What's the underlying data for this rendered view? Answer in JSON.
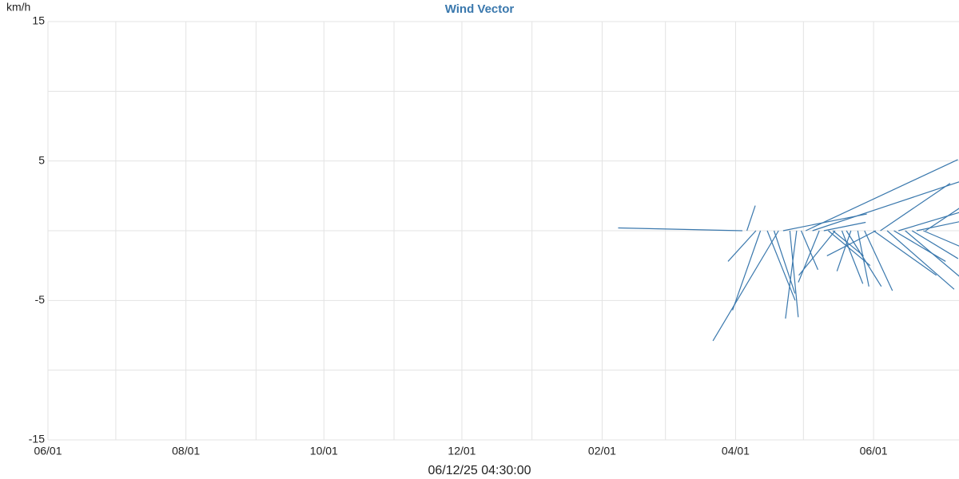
{
  "chart_data": {
    "type": "wind-vector",
    "title": "Wind Vector",
    "y_label": "km/h",
    "x_label": "06/12/25 04:30:00",
    "color": "#3a78ad",
    "grid": true,
    "xlim": [
      "2024-06-01",
      "2025-07-01"
    ],
    "xticks": [
      {
        "value": "2024-06-01",
        "label": "06/01"
      },
      {
        "value": "2024-08-01",
        "label": "08/01"
      },
      {
        "value": "2024-10-01",
        "label": "10/01"
      },
      {
        "value": "2024-12-01",
        "label": "12/01"
      },
      {
        "value": "2025-02-01",
        "label": "02/01"
      },
      {
        "value": "2025-04-01",
        "label": "04/01"
      },
      {
        "value": "2025-06-01",
        "label": "06/01"
      }
    ],
    "xminor": [
      "2024-07-01",
      "2024-09-01",
      "2024-11-01",
      "2025-01-01",
      "2025-03-01",
      "2025-05-01"
    ],
    "ylim": [
      -15,
      15
    ],
    "yticks": [
      15,
      5,
      -5,
      -15
    ],
    "yminor": [
      10,
      0,
      -10
    ],
    "series": [
      {
        "x": [
          "2025-04-04",
          "2025-04-20",
          "2025-04-10",
          "2025-04-06",
          "2025-04-12",
          "2025-04-15",
          "2025-04-18",
          "2025-04-25",
          "2025-04-28",
          "2025-05-02",
          "2025-05-05",
          "2025-04-22",
          "2025-05-08",
          "2025-05-12",
          "2025-05-15",
          "2025-05-18",
          "2025-05-20",
          "2025-05-22",
          "2025-05-25",
          "2025-05-28",
          "2025-06-01",
          "2025-06-04",
          "2025-06-07",
          "2025-06-10",
          "2025-06-12",
          "2025-06-15",
          "2025-06-18",
          "2025-06-20",
          "2025-06-23",
          "2025-05-10",
          "2025-04-30",
          "2025-05-14",
          "2025-06-02",
          "2025-06-24"
        ],
        "u": [
          -8.9,
          -4.7,
          -2.0,
          0.6,
          -2.0,
          2.0,
          1.5,
          0.6,
          -0.8,
          10.9,
          10.5,
          6.0,
          -1.5,
          3.0,
          -2.6,
          1.5,
          2.5,
          -1.0,
          0.8,
          2.0,
          4.5,
          5.0,
          4.8,
          3.7,
          5.0,
          4.5,
          3.3,
          3.8,
          3.5,
          3.0,
          1.2,
          2.2,
          -3.5,
          3.0
        ],
        "v": [
          0.2,
          -7.9,
          -2.2,
          1.8,
          -5.7,
          -5.0,
          -4.5,
          -6.2,
          -6.3,
          5.1,
          3.5,
          1.2,
          -3.7,
          -2.5,
          -3.2,
          -3.8,
          -4.0,
          -2.9,
          -4.0,
          -4.3,
          -3.2,
          3.4,
          -4.2,
          -2.2,
          1.5,
          -3.8,
          -2.0,
          0.8,
          -1.5,
          0.6,
          -2.8,
          -1.8,
          -1.8,
          2.0
        ]
      }
    ]
  }
}
